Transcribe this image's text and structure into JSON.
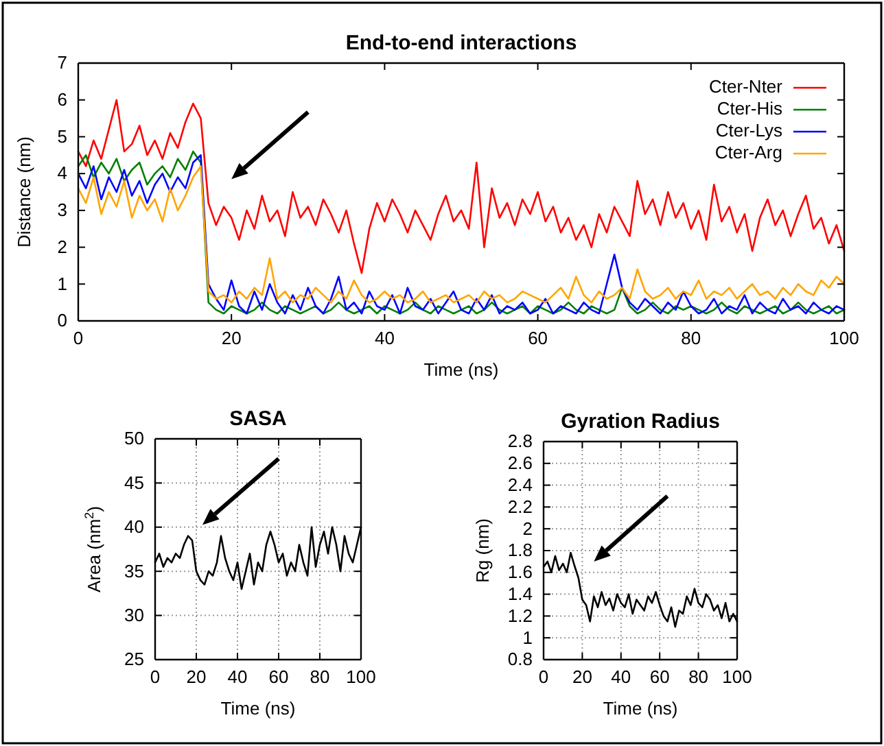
{
  "chart_data": [
    {
      "type": "line",
      "title": "End-to-end interactions",
      "xlabel": "Time (ns)",
      "ylabel": "Distance (nm)",
      "x": [
        0,
        1,
        2,
        3,
        4,
        5,
        6,
        7,
        8,
        9,
        10,
        11,
        12,
        13,
        14,
        15,
        16,
        17,
        18,
        19,
        20,
        21,
        22,
        23,
        24,
        25,
        26,
        27,
        28,
        29,
        30,
        31,
        32,
        33,
        34,
        35,
        36,
        37,
        38,
        39,
        40,
        41,
        42,
        43,
        44,
        45,
        46,
        47,
        48,
        49,
        50,
        51,
        52,
        53,
        54,
        55,
        56,
        57,
        58,
        59,
        60,
        61,
        62,
        63,
        64,
        65,
        66,
        67,
        68,
        69,
        70,
        71,
        72,
        73,
        74,
        75,
        76,
        77,
        78,
        79,
        80,
        81,
        82,
        83,
        84,
        85,
        86,
        87,
        88,
        89,
        90,
        91,
        92,
        93,
        94,
        95,
        96,
        97,
        98,
        99,
        100
      ],
      "series": [
        {
          "name": "Cter-Nter",
          "color": "#ff0000",
          "values": [
            4.6,
            4.2,
            4.9,
            4.4,
            5.2,
            6.0,
            4.6,
            4.8,
            5.3,
            4.5,
            4.9,
            4.4,
            5.1,
            4.7,
            5.4,
            5.9,
            5.5,
            3.2,
            2.6,
            3.1,
            2.8,
            2.2,
            3.0,
            2.5,
            3.4,
            2.7,
            3.0,
            2.3,
            3.5,
            2.8,
            3.1,
            2.6,
            3.3,
            2.9,
            2.4,
            3.0,
            2.1,
            1.3,
            2.5,
            3.2,
            2.7,
            3.3,
            2.9,
            2.4,
            3.0,
            2.6,
            2.2,
            2.9,
            3.4,
            2.7,
            3.0,
            2.5,
            4.3,
            2.0,
            3.6,
            2.8,
            3.2,
            2.6,
            3.3,
            2.9,
            3.5,
            2.7,
            3.1,
            2.4,
            2.8,
            2.2,
            2.6,
            2.0,
            2.9,
            2.4,
            3.1,
            2.7,
            2.3,
            3.8,
            2.9,
            3.3,
            2.6,
            3.5,
            2.8,
            3.2,
            2.5,
            3.0,
            2.2,
            3.7,
            2.7,
            3.1,
            2.4,
            2.9,
            1.9,
            2.8,
            3.3,
            2.6,
            3.0,
            2.3,
            2.9,
            3.4,
            2.5,
            2.8,
            2.1,
            2.6,
            1.9
          ]
        },
        {
          "name": "Cter-His",
          "color": "#008000",
          "values": [
            4.2,
            4.5,
            3.9,
            4.3,
            4.0,
            4.4,
            3.8,
            4.1,
            4.3,
            3.7,
            4.0,
            4.2,
            3.9,
            4.4,
            4.1,
            4.6,
            4.3,
            0.5,
            0.3,
            0.2,
            0.4,
            0.3,
            0.2,
            0.3,
            0.5,
            0.3,
            0.2,
            0.4,
            0.3,
            0.2,
            0.3,
            0.4,
            0.2,
            0.3,
            0.5,
            0.3,
            0.2,
            0.3,
            0.4,
            0.2,
            0.4,
            0.3,
            0.2,
            0.3,
            0.5,
            0.3,
            0.2,
            0.4,
            0.3,
            0.2,
            0.3,
            0.4,
            0.2,
            0.3,
            0.5,
            0.3,
            0.2,
            0.3,
            0.4,
            0.2,
            0.4,
            0.3,
            0.2,
            0.3,
            0.5,
            0.3,
            0.2,
            0.4,
            0.3,
            0.2,
            0.3,
            0.9,
            0.4,
            0.2,
            0.3,
            0.5,
            0.3,
            0.2,
            0.4,
            0.3,
            0.4,
            0.3,
            0.2,
            0.3,
            0.5,
            0.3,
            0.2,
            0.4,
            0.3,
            0.2,
            0.3,
            0.4,
            0.2,
            0.3,
            0.5,
            0.3,
            0.2,
            0.3,
            0.4,
            0.2,
            0.3
          ]
        },
        {
          "name": "Cter-Lys",
          "color": "#0000ff",
          "values": [
            4.0,
            3.6,
            4.2,
            3.3,
            3.9,
            3.5,
            4.1,
            3.4,
            3.8,
            3.2,
            3.7,
            4.0,
            3.5,
            3.9,
            3.6,
            4.3,
            4.5,
            1.0,
            0.6,
            0.3,
            1.1,
            0.4,
            0.2,
            0.8,
            0.3,
            1.0,
            0.5,
            0.2,
            0.7,
            0.3,
            0.9,
            0.4,
            0.2,
            0.6,
            1.2,
            0.3,
            0.5,
            0.2,
            0.8,
            0.4,
            0.3,
            0.7,
            0.2,
            0.9,
            0.4,
            0.3,
            0.6,
            0.2,
            0.5,
            0.8,
            0.3,
            0.2,
            0.6,
            0.3,
            0.7,
            0.2,
            0.4,
            0.3,
            0.5,
            0.2,
            0.3,
            0.6,
            0.2,
            0.4,
            0.3,
            0.2,
            0.5,
            0.3,
            0.2,
            1.0,
            1.8,
            0.9,
            0.5,
            0.3,
            0.6,
            0.4,
            0.2,
            0.5,
            0.3,
            0.8,
            0.4,
            0.2,
            0.3,
            0.6,
            0.2,
            0.4,
            0.3,
            0.7,
            0.2,
            0.5,
            0.3,
            0.2,
            0.6,
            0.3,
            0.4,
            0.2,
            0.5,
            0.3,
            0.2,
            0.4,
            0.3
          ]
        },
        {
          "name": "Cter-Arg",
          "color": "#ffa500",
          "values": [
            3.6,
            3.2,
            3.9,
            2.9,
            3.5,
            3.1,
            3.8,
            2.8,
            3.4,
            3.0,
            3.3,
            2.7,
            3.6,
            3.0,
            3.4,
            3.9,
            4.2,
            0.8,
            0.6,
            0.7,
            0.5,
            0.8,
            0.6,
            0.9,
            0.7,
            1.7,
            0.6,
            0.8,
            0.5,
            0.7,
            0.6,
            0.9,
            0.7,
            0.5,
            0.8,
            0.6,
            1.1,
            0.7,
            0.5,
            0.6,
            0.8,
            0.6,
            0.7,
            0.5,
            0.6,
            0.8,
            0.5,
            0.6,
            0.7,
            0.5,
            0.6,
            0.7,
            0.5,
            0.8,
            0.6,
            0.7,
            0.5,
            0.6,
            0.8,
            0.7,
            0.6,
            0.5,
            0.7,
            0.9,
            0.6,
            1.2,
            0.7,
            0.5,
            0.8,
            0.6,
            0.7,
            0.9,
            0.6,
            1.4,
            0.8,
            0.6,
            0.7,
            0.9,
            0.6,
            0.8,
            0.7,
            1.1,
            0.6,
            0.8,
            0.7,
            0.9,
            0.6,
            0.8,
            1.0,
            0.7,
            0.8,
            0.6,
            0.9,
            0.7,
            1.0,
            0.8,
            0.7,
            1.1,
            0.9,
            1.2,
            1.0
          ]
        }
      ],
      "xlim": [
        0,
        100
      ],
      "ylim": [
        0,
        7
      ],
      "xticks": [
        0,
        20,
        40,
        60,
        80,
        100
      ],
      "yticks": [
        0,
        1,
        2,
        3,
        4,
        5,
        6,
        7
      ],
      "legend": "top right"
    },
    {
      "type": "line",
      "title": "SASA",
      "xlabel": "Time (ns)",
      "ylabel": "Area (nm$^{2}$)",
      "x": [
        0,
        2,
        4,
        6,
        8,
        10,
        12,
        14,
        16,
        18,
        20,
        22,
        24,
        26,
        28,
        30,
        32,
        34,
        36,
        38,
        40,
        42,
        44,
        46,
        48,
        50,
        52,
        54,
        56,
        58,
        60,
        62,
        64,
        66,
        68,
        70,
        72,
        74,
        76,
        78,
        80,
        82,
        84,
        86,
        88,
        90,
        92,
        94,
        96,
        98,
        100
      ],
      "series": [
        {
          "color": "#000000",
          "values": [
            36,
            37,
            35.5,
            36.5,
            36,
            37,
            36.5,
            38,
            39,
            38.5,
            35,
            34,
            33.5,
            35,
            34.5,
            36,
            39,
            36.5,
            35,
            34,
            36,
            33,
            35,
            37,
            33.5,
            36,
            35,
            38,
            39.5,
            38,
            36,
            37,
            34.5,
            36,
            35,
            38,
            36,
            34.5,
            40,
            35.5,
            38,
            39.5,
            37,
            40,
            38,
            35,
            39,
            37,
            36,
            38,
            40
          ]
        }
      ],
      "xlim": [
        0,
        100
      ],
      "ylim": [
        25,
        50
      ],
      "xticks": [
        0,
        20,
        40,
        60,
        80,
        100
      ],
      "yticks": [
        25,
        30,
        35,
        40,
        45,
        50
      ],
      "grid": true
    },
    {
      "type": "line",
      "title": "Gyration Radius",
      "xlabel": "Time (ns)",
      "ylabel": "Rg (nm)",
      "x": [
        0,
        2,
        4,
        6,
        8,
        10,
        12,
        14,
        16,
        18,
        20,
        22,
        24,
        26,
        28,
        30,
        32,
        34,
        36,
        38,
        40,
        42,
        44,
        46,
        48,
        50,
        52,
        54,
        56,
        58,
        60,
        62,
        64,
        66,
        68,
        70,
        72,
        74,
        76,
        78,
        80,
        82,
        84,
        86,
        88,
        90,
        92,
        94,
        96,
        98,
        100
      ],
      "series": [
        {
          "color": "#000000",
          "values": [
            1.65,
            1.7,
            1.6,
            1.75,
            1.62,
            1.68,
            1.6,
            1.78,
            1.66,
            1.55,
            1.35,
            1.3,
            1.15,
            1.38,
            1.28,
            1.42,
            1.3,
            1.36,
            1.25,
            1.4,
            1.32,
            1.28,
            1.4,
            1.22,
            1.35,
            1.3,
            1.25,
            1.38,
            1.32,
            1.42,
            1.3,
            1.2,
            1.15,
            1.28,
            1.1,
            1.25,
            1.22,
            1.38,
            1.3,
            1.45,
            1.32,
            1.28,
            1.4,
            1.35,
            1.25,
            1.3,
            1.18,
            1.32,
            1.15,
            1.22,
            1.15
          ]
        }
      ],
      "xlim": [
        0,
        100
      ],
      "ylim": [
        0.8,
        2.8
      ],
      "xticks": [
        0,
        20,
        40,
        60,
        80,
        100
      ],
      "yticks": [
        0.8,
        1,
        1.2,
        1.4,
        1.6,
        1.8,
        2,
        2.2,
        2.4,
        2.6,
        2.8
      ],
      "grid": true
    }
  ]
}
